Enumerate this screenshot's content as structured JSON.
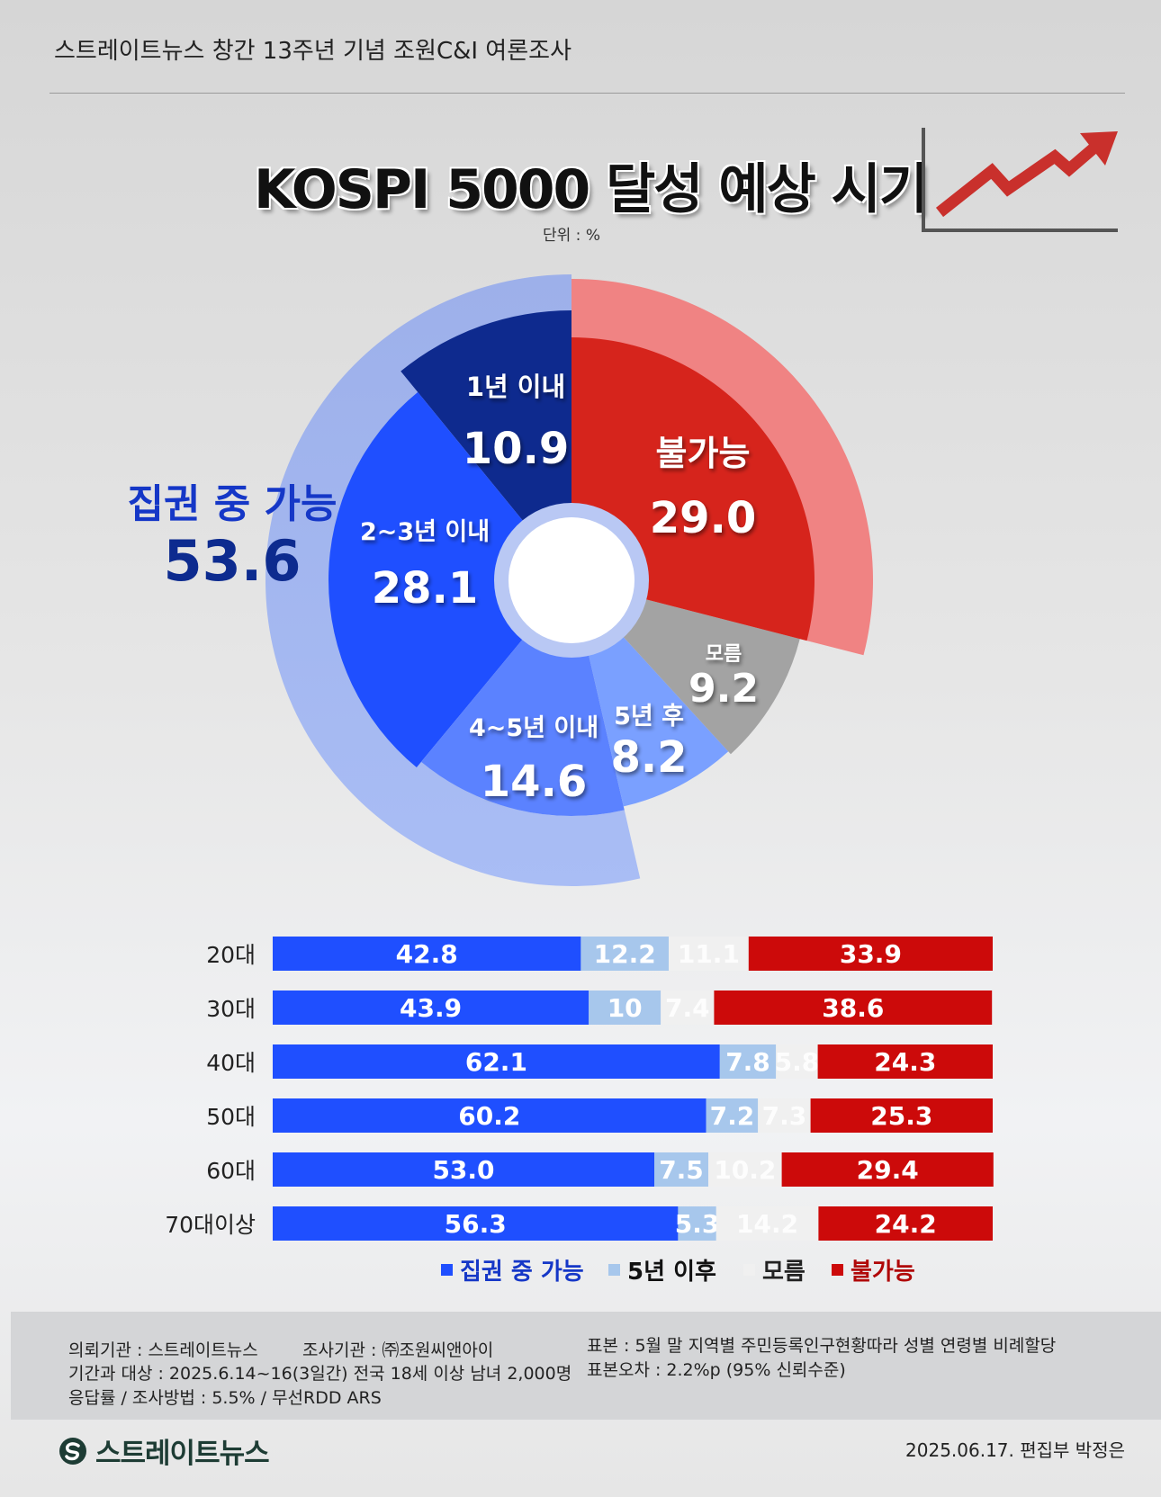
{
  "header": {
    "title": "스트레이트뉴스 창간 13주년 기념 조원C&I 여론조사",
    "chart_title": "KOSPI 5000 달성 예상 시기",
    "unit": "단위 : %"
  },
  "colors": {
    "possible": "#1f4fff",
    "after5": "#a7c7ec",
    "unknown": "#f0f0f0",
    "impossible": "#cc0a0a",
    "navy": "#0d2b8f"
  },
  "chart_data": [
    {
      "type": "pie",
      "group_label": "집권 중 가능",
      "group_value": 53.6,
      "slices": [
        {
          "label": "1년 이내",
          "value": 10.9
        },
        {
          "label": "2~3년 이내",
          "value": 28.1
        },
        {
          "label": "4~5년 이내",
          "value": 14.6
        },
        {
          "label": "5년 후",
          "value": 8.2
        },
        {
          "label": "모름",
          "value": 9.2
        },
        {
          "label": "불가능",
          "value": 29.0
        }
      ]
    },
    {
      "type": "bar",
      "stacked": true,
      "orientation": "horizontal",
      "categories": [
        "20대",
        "30대",
        "40대",
        "50대",
        "60대",
        "70대이상"
      ],
      "series": [
        {
          "name": "집권 중 가능",
          "values": [
            "42.8",
            "43.9",
            "62.1",
            "60.2",
            "53.0",
            "56.3"
          ]
        },
        {
          "name": "5년 이후",
          "values": [
            "12.2",
            "10",
            "7.8",
            "7.2",
            "7.5",
            "5.3"
          ]
        },
        {
          "name": "모름",
          "values": [
            "11.1",
            "7.4",
            "5.8",
            "7.3",
            "10.2",
            "14.2"
          ]
        },
        {
          "name": "불가능",
          "values": [
            "33.9",
            "38.6",
            "24.3",
            "25.3",
            "29.4",
            "24.2"
          ]
        }
      ]
    }
  ],
  "footer": {
    "client": "의뢰기관 : 스트레이트뉴스",
    "agency": "조사기관 : ㈜조원씨앤아이",
    "sample": "표본 : 5월 말 지역별 주민등록인구현황따라 성별 연령별 비례할당",
    "period": "기간과 대상 : 2025.6.14~16(3일간)  전국 18세 이상 남녀 2,000명",
    "error": "표본오차 : 2.2%p (95% 신뢰수준)",
    "method": "응답률 / 조사방법 : 5.5% / 무선RDD ARS",
    "date_editor": "2025.06.17. 편집부 박정은",
    "logo_text": "스트레이트뉴스"
  }
}
